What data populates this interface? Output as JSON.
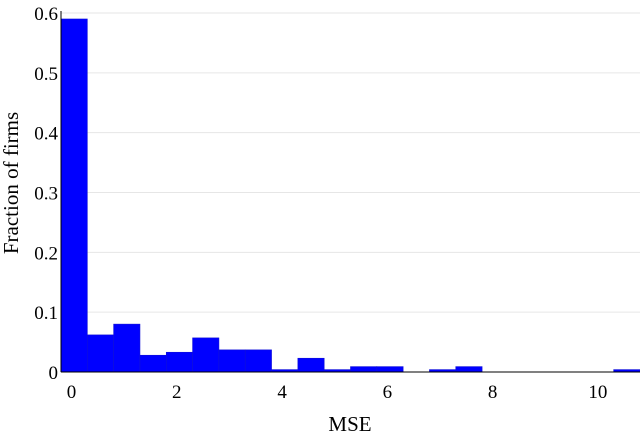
{
  "chart_data": {
    "type": "bar",
    "title": "",
    "xlabel": "MSE",
    "ylabel": "Fraction of firms",
    "bin_width": 0.5,
    "xlim": [
      -0.2,
      10.8
    ],
    "ylim": [
      0,
      0.6
    ],
    "x_ticks": [
      0,
      2,
      4,
      6,
      8,
      10
    ],
    "y_ticks": [
      0,
      0.1,
      0.2,
      0.3,
      0.4,
      0.5,
      0.6
    ],
    "grid": "horizontal",
    "bar_color": "#0000ff",
    "bins": [
      {
        "start": -0.2,
        "value": 0.59
      },
      {
        "start": 0.3,
        "value": 0.062
      },
      {
        "start": 0.8,
        "value": 0.08
      },
      {
        "start": 1.3,
        "value": 0.028
      },
      {
        "start": 1.8,
        "value": 0.033
      },
      {
        "start": 2.3,
        "value": 0.057
      },
      {
        "start": 2.8,
        "value": 0.037
      },
      {
        "start": 3.3,
        "value": 0.037
      },
      {
        "start": 3.8,
        "value": 0.004
      },
      {
        "start": 4.3,
        "value": 0.023
      },
      {
        "start": 4.8,
        "value": 0.004
      },
      {
        "start": 5.3,
        "value": 0.009
      },
      {
        "start": 5.8,
        "value": 0.009
      },
      {
        "start": 6.8,
        "value": 0.004
      },
      {
        "start": 7.3,
        "value": 0.009
      },
      {
        "start": 10.3,
        "value": 0.004
      }
    ]
  }
}
